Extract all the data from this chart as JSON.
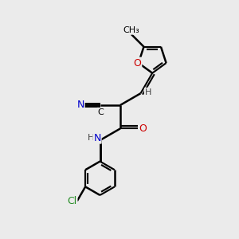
{
  "bg_color": "#ebebeb",
  "bond_color": "#000000",
  "bond_width": 1.8,
  "atom_colors": {
    "C": "#000000",
    "N": "#0000cc",
    "O": "#cc0000",
    "Cl": "#228B22",
    "H": "#404040"
  },
  "font_size": 9,
  "figsize": [
    3.0,
    3.0
  ],
  "dpi": 100
}
